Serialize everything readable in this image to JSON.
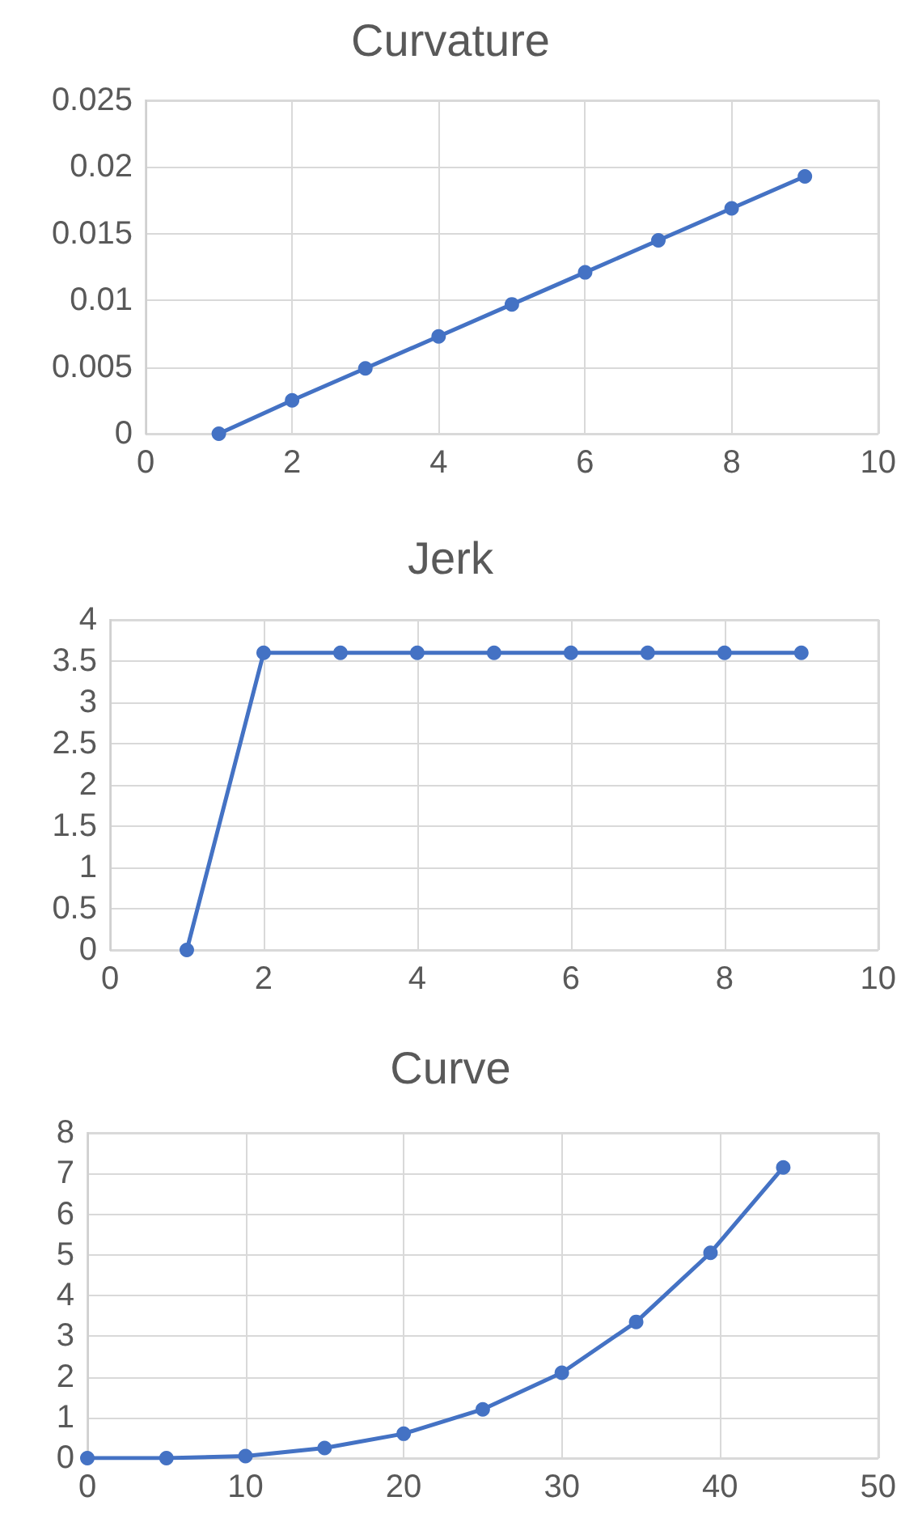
{
  "chart_data": [
    {
      "type": "line",
      "title": "Curvature",
      "x": [
        1,
        2,
        3,
        4,
        5,
        6,
        7,
        8,
        9
      ],
      "series": [
        {
          "color": "#4472c4",
          "values": [
            0,
            0.0025,
            0.0049,
            0.0073,
            0.0097,
            0.0121,
            0.0145,
            0.0169,
            0.0193
          ]
        }
      ],
      "xlim": [
        0,
        10
      ],
      "xticks": [
        0,
        2,
        4,
        6,
        8,
        10
      ],
      "ylim": [
        0,
        0.025
      ],
      "yticks": [
        0,
        0.005,
        0.01,
        0.015,
        0.02,
        0.025
      ],
      "grid": true,
      "marker": "circle"
    },
    {
      "type": "line",
      "title": "Jerk",
      "x": [
        1,
        2,
        3,
        4,
        5,
        6,
        7,
        8,
        9
      ],
      "series": [
        {
          "color": "#4472c4",
          "values": [
            0,
            3.6,
            3.6,
            3.6,
            3.6,
            3.6,
            3.6,
            3.6,
            3.6
          ]
        }
      ],
      "xlim": [
        0,
        10
      ],
      "xticks": [
        0,
        2,
        4,
        6,
        8,
        10
      ],
      "ylim": [
        0,
        4
      ],
      "yticks": [
        0,
        0.5,
        1,
        1.5,
        2,
        2.5,
        3,
        3.5,
        4
      ],
      "grid": true,
      "marker": "circle"
    },
    {
      "type": "line",
      "title": "Curve",
      "x": [
        0,
        5,
        10,
        15,
        20,
        25,
        30,
        34.7,
        39.4,
        44
      ],
      "series": [
        {
          "color": "#4472c4",
          "values": [
            0,
            0,
            0.05,
            0.25,
            0.6,
            1.2,
            2.1,
            3.35,
            5.05,
            7.15
          ]
        }
      ],
      "xlim": [
        0,
        50
      ],
      "xticks": [
        0,
        10,
        20,
        30,
        40,
        50
      ],
      "ylim": [
        0,
        8
      ],
      "yticks": [
        0,
        1,
        2,
        3,
        4,
        5,
        6,
        7,
        8
      ],
      "grid": true,
      "marker": "circle"
    }
  ]
}
